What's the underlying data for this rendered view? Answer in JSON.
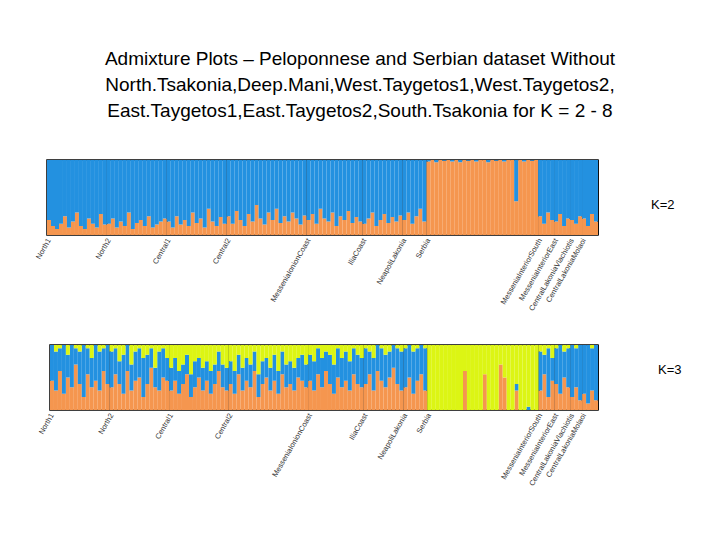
{
  "title": "Admixture Plots – Peloponnese and Serbian dataset Without\nNorth.Tsakonia,Deep.Mani,West.Taygetos1,West.Taygetos2,\nEast.Taygetos1,East.Taygetos2,South.Tsakonia for K = 2 - 8",
  "chart_data": [
    {
      "type": "bar",
      "stacked": true,
      "tick_labels": "x",
      "annotations": [
        "K=2"
      ],
      "ylim": [
        0,
        1
      ],
      "categories": [
        "North1",
        null,
        null,
        null,
        null,
        null,
        null,
        null,
        null,
        null,
        null,
        null,
        null,
        null,
        null,
        "North2",
        null,
        null,
        null,
        null,
        null,
        null,
        null,
        null,
        null,
        null,
        null,
        null,
        null,
        null,
        "Central1",
        null,
        null,
        null,
        null,
        null,
        null,
        null,
        null,
        null,
        null,
        null,
        null,
        null,
        null,
        "Central2",
        null,
        null,
        null,
        null,
        null,
        null,
        null,
        null,
        null,
        null,
        null,
        null,
        null,
        null,
        null,
        null,
        null,
        null,
        null,
        "MesseniaIonionCoast",
        null,
        null,
        null,
        null,
        null,
        null,
        null,
        null,
        null,
        null,
        null,
        null,
        null,
        "IliaCoast",
        null,
        null,
        null,
        null,
        null,
        null,
        null,
        null,
        null,
        "NeapoliLakonia",
        null,
        null,
        null,
        null,
        null,
        "Serbia",
        null,
        null,
        null,
        null,
        null,
        null,
        null,
        null,
        null,
        null,
        null,
        null,
        null,
        null,
        null,
        null,
        null,
        null,
        null,
        null,
        null,
        null,
        null,
        null,
        null,
        null,
        null,
        "MesseniaInteriorSouth",
        null,
        null,
        null,
        "MesseniaInteriorEast",
        null,
        null,
        null,
        "CentralLakoniaVlachiotis",
        null,
        null,
        "CentralLakoniaMolaoi",
        null,
        null,
        null
      ],
      "series": [
        {
          "color": "#f5964f",
          "values": [
            0.2,
            0.12,
            0.08,
            0.15,
            0.25,
            0.1,
            0.18,
            0.3,
            0.12,
            0.08,
            0.22,
            0.15,
            0.1,
            0.28,
            0.14,
            0.15,
            0.22,
            0.1,
            0.18,
            0.12,
            0.3,
            0.08,
            0.16,
            0.2,
            0.12,
            0.25,
            0.1,
            0.14,
            0.18,
            0.22,
            0.18,
            0.1,
            0.25,
            0.14,
            0.2,
            0.12,
            0.3,
            0.16,
            0.22,
            0.1,
            0.35,
            0.18,
            0.12,
            0.24,
            0.15,
            0.25,
            0.15,
            0.32,
            0.2,
            0.12,
            0.28,
            0.18,
            0.4,
            0.22,
            0.14,
            0.3,
            0.2,
            0.35,
            0.16,
            0.25,
            0.18,
            0.3,
            0.22,
            0.14,
            0.26,
            0.2,
            0.28,
            0.15,
            0.35,
            0.22,
            0.18,
            0.3,
            0.12,
            0.25,
            0.2,
            0.32,
            0.16,
            0.24,
            0.18,
            0.15,
            0.22,
            0.3,
            0.12,
            0.2,
            0.28,
            0.16,
            0.24,
            0.18,
            0.26,
            0.2,
            0.3,
            0.15,
            0.25,
            0.35,
            0.18,
            0.98,
            1.0,
            0.97,
            1.0,
            0.99,
            1.0,
            0.98,
            1.0,
            0.97,
            1.0,
            0.99,
            1.0,
            0.98,
            1.0,
            1.0,
            0.97,
            1.0,
            0.99,
            1.0,
            0.98,
            1.0,
            1.0,
            0.45,
            1.0,
            0.98,
            1.0,
            0.99,
            1.0,
            0.25,
            0.15,
            0.3,
            0.2,
            0.18,
            0.28,
            0.12,
            0.22,
            0.2,
            0.15,
            0.25,
            0.22,
            0.12,
            0.28,
            0.18
          ]
        },
        {
          "color": "#2391e0",
          "values": [
            0.8,
            0.88,
            0.92,
            0.85,
            0.75,
            0.9,
            0.82,
            0.7,
            0.88,
            0.92,
            0.78,
            0.85,
            0.9,
            0.72,
            0.86,
            0.85,
            0.78,
            0.9,
            0.82,
            0.88,
            0.7,
            0.92,
            0.84,
            0.8,
            0.88,
            0.75,
            0.9,
            0.86,
            0.82,
            0.78,
            0.82,
            0.9,
            0.75,
            0.86,
            0.8,
            0.88,
            0.7,
            0.84,
            0.78,
            0.9,
            0.65,
            0.82,
            0.88,
            0.76,
            0.85,
            0.75,
            0.85,
            0.68,
            0.8,
            0.88,
            0.72,
            0.82,
            0.6,
            0.78,
            0.86,
            0.7,
            0.8,
            0.65,
            0.84,
            0.75,
            0.82,
            0.7,
            0.78,
            0.86,
            0.74,
            0.8,
            0.72,
            0.85,
            0.65,
            0.78,
            0.82,
            0.7,
            0.88,
            0.75,
            0.8,
            0.68,
            0.84,
            0.76,
            0.82,
            0.85,
            0.78,
            0.7,
            0.88,
            0.8,
            0.72,
            0.84,
            0.76,
            0.82,
            0.74,
            0.8,
            0.7,
            0.85,
            0.75,
            0.65,
            0.82,
            0.02,
            0,
            0.03,
            0,
            0.01,
            0,
            0.02,
            0,
            0.03,
            0,
            0.01,
            0,
            0.02,
            0,
            0,
            0.03,
            0,
            0.01,
            0,
            0.02,
            0,
            0,
            0.55,
            0,
            0.02,
            0,
            0.01,
            0,
            0.75,
            0.85,
            0.7,
            0.8,
            0.82,
            0.72,
            0.88,
            0.78,
            0.8,
            0.85,
            0.75,
            0.78,
            0.88,
            0.72,
            0.82
          ]
        }
      ]
    },
    {
      "type": "bar",
      "stacked": true,
      "tick_labels": "x",
      "annotations": [
        "K=3"
      ],
      "ylim": [
        0,
        1
      ],
      "categories": [
        "North1",
        null,
        null,
        null,
        null,
        null,
        null,
        null,
        null,
        null,
        null,
        null,
        null,
        null,
        null,
        "North2",
        null,
        null,
        null,
        null,
        null,
        null,
        null,
        null,
        null,
        null,
        null,
        null,
        null,
        null,
        "Central1",
        null,
        null,
        null,
        null,
        null,
        null,
        null,
        null,
        null,
        null,
        null,
        null,
        null,
        null,
        "Central2",
        null,
        null,
        null,
        null,
        null,
        null,
        null,
        null,
        null,
        null,
        null,
        null,
        null,
        null,
        null,
        null,
        null,
        null,
        null,
        "MesseniaIonionCoast",
        null,
        null,
        null,
        null,
        null,
        null,
        null,
        null,
        null,
        null,
        null,
        null,
        null,
        "IliaCoast",
        null,
        null,
        null,
        null,
        null,
        null,
        null,
        null,
        null,
        "NeapoliLakonia",
        null,
        null,
        null,
        null,
        null,
        "Serbia",
        null,
        null,
        null,
        null,
        null,
        null,
        null,
        null,
        null,
        null,
        null,
        null,
        null,
        null,
        null,
        null,
        null,
        null,
        null,
        null,
        null,
        null,
        null,
        null,
        null,
        null,
        null,
        "MesseniaInteriorSouth",
        null,
        null,
        null,
        "MesseniaInteriorEast",
        null,
        null,
        null,
        "CentralLakoniaVlachiotis",
        null,
        null,
        "CentralLakoniaMolaoi",
        null,
        null,
        null
      ],
      "series": [
        {
          "color": "#f5964f",
          "values": [
            0.45,
            0.3,
            0.6,
            0.25,
            0.5,
            0.35,
            0.7,
            0.4,
            0.2,
            0.55,
            0.35,
            0.45,
            0.3,
            0.6,
            0.4,
            0.35,
            0.55,
            0.4,
            0.25,
            0.6,
            0.3,
            0.45,
            0.5,
            0.2,
            0.4,
            0.65,
            0.35,
            0.3,
            0.5,
            0.45,
            0.3,
            0.45,
            0.25,
            0.4,
            0.55,
            0.2,
            0.35,
            0.5,
            0.3,
            0.45,
            0.25,
            0.4,
            0.6,
            0.35,
            0.3,
            0.4,
            0.25,
            0.55,
            0.3,
            0.45,
            0.35,
            0.6,
            0.2,
            0.4,
            0.5,
            0.3,
            0.45,
            0.25,
            0.55,
            0.35,
            0.4,
            0.3,
            0.5,
            0.45,
            0.35,
            0.45,
            0.3,
            0.55,
            0.35,
            0.6,
            0.4,
            0.25,
            0.5,
            0.35,
            0.45,
            0.3,
            0.55,
            0.4,
            0.35,
            0.4,
            0.55,
            0.3,
            0.6,
            0.45,
            0.35,
            0.5,
            0.65,
            0.4,
            0.3,
            0.35,
            0.5,
            0.25,
            0.45,
            0.55,
            0.3,
            0,
            0,
            0,
            0,
            0,
            0,
            0,
            0,
            0,
            0.6,
            0,
            0,
            0,
            0,
            0.55,
            0,
            0,
            0,
            0.7,
            0.5,
            0,
            0,
            0.3,
            0,
            0,
            0,
            0,
            0,
            0.3,
            0.55,
            0.2,
            0.45,
            0.4,
            0.25,
            0.5,
            0.35,
            0.2,
            0.35,
            0.15,
            0.25,
            0.1,
            0.3,
            0.15
          ]
        },
        {
          "color": "#2391e0",
          "values": [
            0.55,
            0.6,
            0.35,
            0.75,
            0.35,
            0.65,
            0.25,
            0.5,
            0.8,
            0.4,
            0.45,
            0.55,
            0.6,
            0.35,
            0.6,
            0.55,
            0.4,
            0.35,
            0.6,
            0.4,
            0.4,
            0.45,
            0.45,
            0.6,
            0.45,
            0.3,
            0.3,
            0.6,
            0.45,
            0.35,
            0.35,
            0.35,
            0.35,
            0.3,
            0.3,
            0.35,
            0.4,
            0.3,
            0.35,
            0.3,
            0.35,
            0.3,
            0.3,
            0.35,
            0.35,
            0.35,
            0.35,
            0.3,
            0.35,
            0.35,
            0.35,
            0.3,
            0.35,
            0.35,
            0.3,
            0.35,
            0.4,
            0.35,
            0.35,
            0.35,
            0.35,
            0.35,
            0.3,
            0.4,
            0.35,
            0.4,
            0.45,
            0.4,
            0.45,
            0.3,
            0.45,
            0.45,
            0.45,
            0.45,
            0.45,
            0.45,
            0.4,
            0.45,
            0.45,
            0.55,
            0.35,
            0.5,
            0.4,
            0.5,
            0.5,
            0.4,
            0.35,
            0.55,
            0.6,
            0.6,
            0.5,
            0.65,
            0.5,
            0.45,
            0.65,
            0,
            0,
            0,
            0,
            0,
            0,
            0,
            0,
            0,
            0,
            0,
            0,
            0,
            0,
            0,
            0,
            0,
            0,
            0,
            0,
            0,
            0,
            0.1,
            0,
            0,
            0.05,
            0,
            0,
            0.6,
            0.3,
            0.75,
            0.35,
            0.55,
            0.75,
            0.4,
            0.6,
            0.8,
            0.6,
            0.85,
            0.75,
            0.9,
            0.65,
            0.85
          ]
        },
        {
          "color": "#dcf514",
          "values": [
            0,
            0.1,
            0.05,
            0,
            0.15,
            0,
            0.05,
            0.1,
            0,
            0.05,
            0.2,
            0,
            0.1,
            0.05,
            0,
            0.1,
            0.05,
            0.25,
            0.15,
            0,
            0.3,
            0.1,
            0.05,
            0.2,
            0.15,
            0.05,
            0.35,
            0.1,
            0.05,
            0.2,
            0.35,
            0.2,
            0.4,
            0.3,
            0.15,
            0.45,
            0.25,
            0.2,
            0.35,
            0.25,
            0.4,
            0.3,
            0.1,
            0.3,
            0.35,
            0.25,
            0.4,
            0.15,
            0.35,
            0.2,
            0.3,
            0.1,
            0.45,
            0.25,
            0.2,
            0.35,
            0.15,
            0.4,
            0.1,
            0.3,
            0.25,
            0.35,
            0.2,
            0.15,
            0.3,
            0.15,
            0.25,
            0.05,
            0.2,
            0.1,
            0.15,
            0.3,
            0.05,
            0.2,
            0.1,
            0.25,
            0.05,
            0.15,
            0.2,
            0.05,
            0.1,
            0.2,
            0,
            0.05,
            0.15,
            0.1,
            0,
            0.05,
            0.1,
            0.05,
            0,
            0.1,
            0.05,
            0,
            0.05,
            1,
            1,
            1,
            1,
            1,
            1,
            1,
            1,
            1,
            0.4,
            1,
            1,
            1,
            1,
            0.45,
            1,
            1,
            1,
            0.3,
            0.5,
            1,
            1,
            0.6,
            1,
            1,
            0.95,
            1,
            1,
            0.1,
            0.15,
            0.05,
            0.2,
            0.05,
            0,
            0.1,
            0.05,
            0,
            0.05,
            0,
            0,
            0,
            0.05,
            0
          ]
        }
      ]
    }
  ]
}
